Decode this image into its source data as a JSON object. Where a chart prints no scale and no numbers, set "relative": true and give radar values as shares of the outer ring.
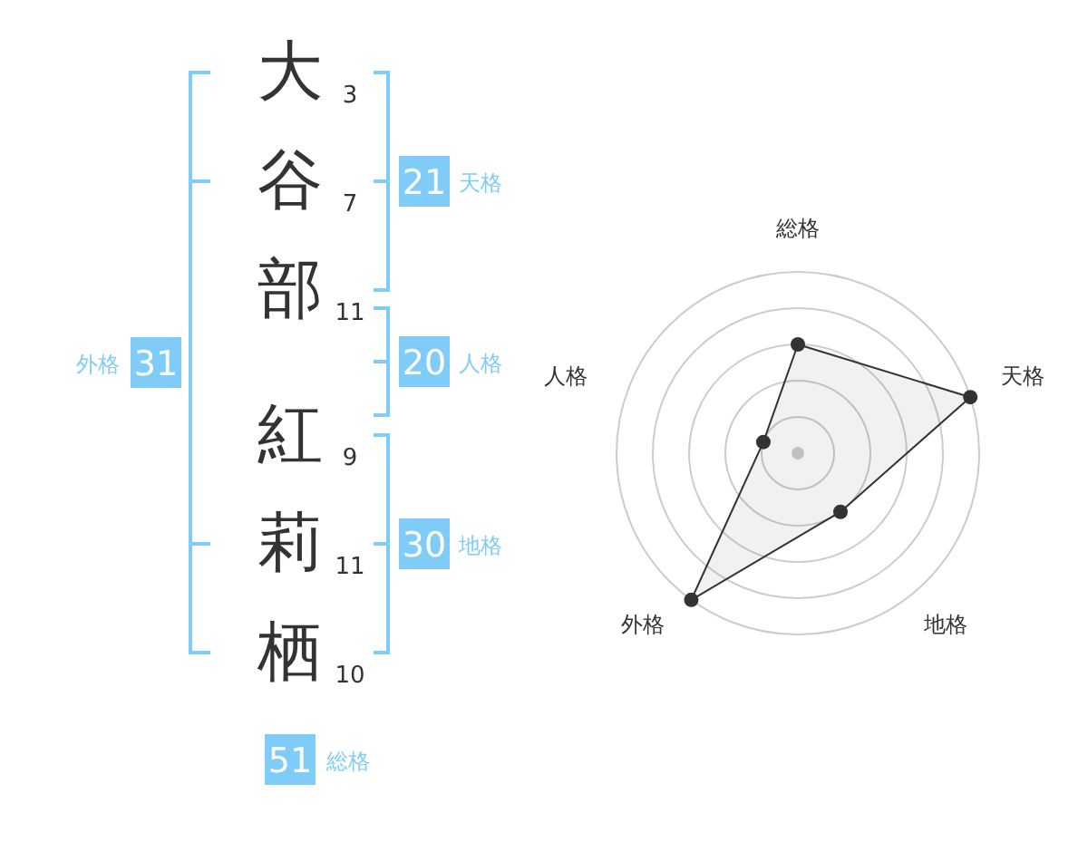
{
  "chart_data": [
    {
      "type": "other",
      "categories": [
        "大",
        "谷",
        "部",
        "紅",
        "莉",
        "栖"
      ],
      "values": [
        3,
        7,
        11,
        9,
        11,
        10
      ],
      "data_labels": true
    },
    {
      "type": "other",
      "categories": [
        "天格",
        "人格",
        "地格",
        "外格",
        "総格"
      ],
      "values": [
        21,
        20,
        30,
        31,
        51
      ],
      "color": "#80ccf8",
      "data_labels": true
    },
    {
      "type": "radar",
      "categories": [
        "総格",
        "天格",
        "地格",
        "外格",
        "人格"
      ],
      "series": [
        {
          "color": "#333333",
          "values": [
            0.6,
            1,
            0.4,
            1,
            0.2
          ]
        }
      ],
      "relative": true,
      "grid": true,
      "marker": "circle"
    }
  ]
}
